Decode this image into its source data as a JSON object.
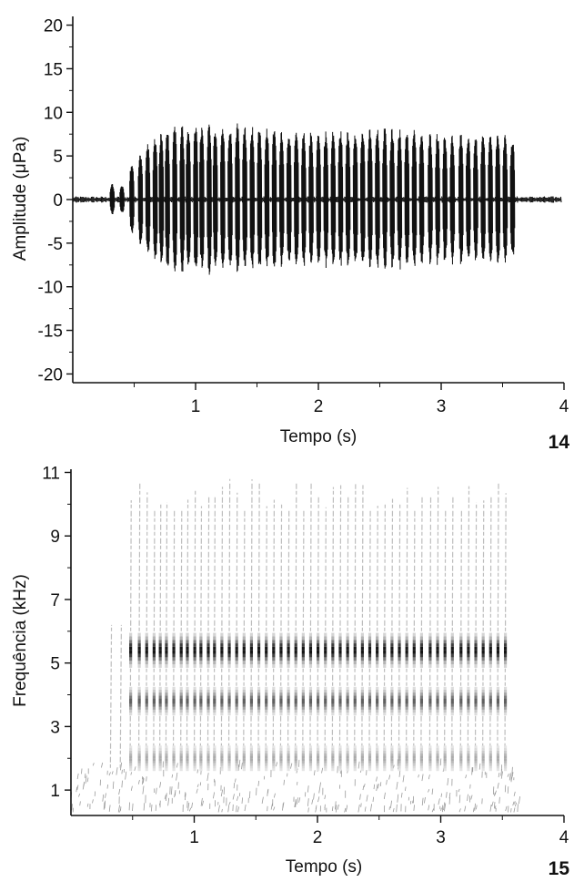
{
  "chart_data": [
    {
      "type": "line",
      "panel_number": "14",
      "xlabel": "Tempo (s)",
      "ylabel": "Amplitude (μPa)",
      "xlim": [
        0,
        4
      ],
      "ylim": [
        -21,
        21
      ],
      "x_ticks": [
        "1",
        "2",
        "3",
        "4"
      ],
      "y_ticks": [
        "20",
        "15",
        "10",
        "5",
        "0",
        "-5",
        "-10",
        "-15",
        "-20"
      ],
      "x_tick_values": [
        1,
        2,
        3,
        4
      ],
      "y_tick_values": [
        20,
        15,
        10,
        5,
        0,
        -5,
        -10,
        -15,
        -20
      ],
      "grid": false,
      "line_color": "#111111",
      "signal": {
        "x_start": 0.0,
        "x_end": 3.98,
        "baseline_amplitude": 0.3,
        "pulses": [
          {
            "t": 0.32,
            "amp": 1.8
          },
          {
            "t": 0.4,
            "amp": 1.6
          },
          {
            "t": 0.48,
            "amp": 4.2
          },
          {
            "t": 0.55,
            "amp": 5.5
          },
          {
            "t": 0.61,
            "amp": 6.5
          },
          {
            "t": 0.67,
            "amp": 7.2
          },
          {
            "t": 0.72,
            "amp": 7.8
          },
          {
            "t": 0.77,
            "amp": 8.2
          },
          {
            "t": 0.83,
            "amp": 8.5
          },
          {
            "t": 0.89,
            "amp": 8.6
          },
          {
            "t": 0.94,
            "amp": 8.4
          },
          {
            "t": 1.0,
            "amp": 8.6
          },
          {
            "t": 1.05,
            "amp": 8.5
          },
          {
            "t": 1.11,
            "amp": 8.7
          },
          {
            "t": 1.16,
            "amp": 8.5
          },
          {
            "t": 1.22,
            "amp": 8.6
          },
          {
            "t": 1.28,
            "amp": 8.7
          },
          {
            "t": 1.34,
            "amp": 9.1
          },
          {
            "t": 1.4,
            "amp": 8.8
          },
          {
            "t": 1.46,
            "amp": 8.6
          },
          {
            "t": 1.52,
            "amp": 8.5
          },
          {
            "t": 1.58,
            "amp": 8.3
          },
          {
            "t": 1.64,
            "amp": 8.4
          },
          {
            "t": 1.7,
            "amp": 8.2
          },
          {
            "t": 1.76,
            "amp": 8.0
          },
          {
            "t": 1.82,
            "amp": 7.9
          },
          {
            "t": 1.88,
            "amp": 7.8
          },
          {
            "t": 1.94,
            "amp": 7.9
          },
          {
            "t": 2.0,
            "amp": 7.8
          },
          {
            "t": 2.06,
            "amp": 7.9
          },
          {
            "t": 2.12,
            "amp": 8.0
          },
          {
            "t": 2.18,
            "amp": 8.1
          },
          {
            "t": 2.24,
            "amp": 8.0
          },
          {
            "t": 2.3,
            "amp": 8.2
          },
          {
            "t": 2.36,
            "amp": 8.1
          },
          {
            "t": 2.42,
            "amp": 8.3
          },
          {
            "t": 2.48,
            "amp": 8.2
          },
          {
            "t": 2.54,
            "amp": 8.4
          },
          {
            "t": 2.6,
            "amp": 8.3
          },
          {
            "t": 2.66,
            "amp": 8.3
          },
          {
            "t": 2.72,
            "amp": 8.2
          },
          {
            "t": 2.78,
            "amp": 8.1
          },
          {
            "t": 2.84,
            "amp": 7.9
          },
          {
            "t": 2.91,
            "amp": 7.7
          },
          {
            "t": 2.97,
            "amp": 7.8
          },
          {
            "t": 3.03,
            "amp": 7.6
          },
          {
            "t": 3.09,
            "amp": 7.5
          },
          {
            "t": 3.16,
            "amp": 7.6
          },
          {
            "t": 3.22,
            "amp": 7.5
          },
          {
            "t": 3.28,
            "amp": 7.4
          },
          {
            "t": 3.34,
            "amp": 7.6
          },
          {
            "t": 3.4,
            "amp": 7.5
          },
          {
            "t": 3.46,
            "amp": 7.7
          },
          {
            "t": 3.52,
            "amp": 7.4
          },
          {
            "t": 3.58,
            "amp": 7.2
          }
        ]
      }
    },
    {
      "type": "heatmap",
      "panel_number": "15",
      "xlabel": "Tempo (s)",
      "ylabel": "Frequência (kHz)",
      "xlim": [
        0,
        4
      ],
      "ylim": [
        0.2,
        11.1
      ],
      "x_ticks": [
        "1",
        "2",
        "3",
        "4"
      ],
      "y_ticks": [
        "11",
        "9",
        "7",
        "5",
        "3",
        "1"
      ],
      "x_tick_values": [
        1,
        2,
        3,
        4
      ],
      "y_tick_values": [
        11,
        9,
        7,
        5,
        3,
        1
      ],
      "grid": false,
      "ink_color": "#111111",
      "pulse_times": [
        0.32,
        0.4,
        0.48,
        0.55,
        0.61,
        0.67,
        0.72,
        0.77,
        0.83,
        0.89,
        0.94,
        1.0,
        1.05,
        1.11,
        1.16,
        1.22,
        1.28,
        1.34,
        1.4,
        1.46,
        1.52,
        1.58,
        1.64,
        1.7,
        1.76,
        1.82,
        1.88,
        1.94,
        2.0,
        2.06,
        2.12,
        2.18,
        2.24,
        2.3,
        2.36,
        2.42,
        2.48,
        2.54,
        2.6,
        2.66,
        2.72,
        2.78,
        2.84,
        2.91,
        2.97,
        3.03,
        3.09,
        3.16,
        3.22,
        3.28,
        3.34,
        3.4,
        3.46,
        3.52
      ],
      "energy_bands_khz": [
        {
          "center": 5.4,
          "halfwidth": 0.55,
          "strength": 1.0
        },
        {
          "center": 3.8,
          "halfwidth": 0.45,
          "strength": 0.65
        },
        {
          "center": 2.0,
          "halfwidth": 0.4,
          "strength": 0.3
        }
      ],
      "pulse_freq_range_khz": [
        1.7,
        10.8
      ],
      "noise_freq_range_khz": [
        0.3,
        1.8
      ],
      "noise_time_range_s": [
        0.0,
        3.65
      ]
    }
  ]
}
